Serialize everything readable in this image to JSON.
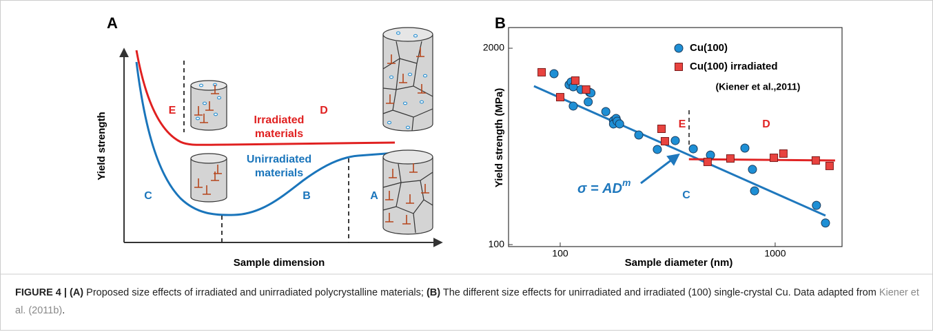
{
  "panel_a": {
    "label": "A",
    "y_label": "Yield strength",
    "x_label": "Sample dimension",
    "irradiated_label": [
      "Irradiated",
      "materials"
    ],
    "unirradiated_label": [
      "Unirradiated",
      "materials"
    ],
    "regions": {
      "E": "E",
      "D": "D",
      "C": "C",
      "B": "B",
      "A": "A"
    }
  },
  "chart_data": {
    "type": "scatter",
    "label": "B",
    "xlabel": "Sample diameter (nm)",
    "ylabel": "Yield strength (MPa)",
    "xscale": "log",
    "yscale": "log",
    "xlim": [
      57.5,
      2047
    ],
    "ylim": [
      97,
      2742
    ],
    "xticks": [
      100,
      1000
    ],
    "yticks": [
      100,
      2000
    ],
    "legend": "upper right",
    "series": [
      {
        "name": "Cu(100)",
        "color": "#1e8fd5",
        "marker": "circle",
        "x": [
          93.6,
          110,
          112.5,
          115,
          115,
          124.8,
          135,
          137,
          139,
          163,
          177,
          177,
          182,
          184,
          189,
          232,
          283,
          343,
          416,
          500,
          723,
          784,
          802,
          1556,
          1714
        ],
        "values": [
          1356,
          1146,
          1196,
          1111,
          828,
          1065,
          882,
          1021,
          1011,
          761,
          663,
          630,
          685,
          657,
          630,
          532,
          427,
          489,
          431,
          392,
          436,
          315,
          227,
          182,
          139
        ]
      },
      {
        "name": "Cu(100) irradiated",
        "color": "#e8433f",
        "marker": "square",
        "x": [
          82,
          100,
          117.6,
          132,
          296,
          307,
          485,
          619,
          986,
          1092,
          1545,
          1791
        ],
        "values": [
          1386,
          948,
          1221,
          1065,
          585,
          484,
          353,
          372,
          376,
          401,
          361,
          332
        ]
      },
      {
        "type": "line",
        "color": "#1f78bd",
        "x": [
          75.5,
          1714
        ],
        "values": [
          1122,
          155.6
        ]
      },
      {
        "type": "line",
        "color": "#e02424",
        "x": [
          397,
          1900
        ],
        "values": [
          368,
          361
        ]
      }
    ],
    "legend_note": "(Kiener et al.,2011)",
    "region_labels": {
      "E": "E",
      "D": "D",
      "C": "C"
    },
    "equation": {
      "base": "σ = AD",
      "exponent": "m"
    }
  },
  "caption": {
    "figure": "FIGURE 4 |",
    "part_a": "(A)",
    "text_a": " Proposed size effects of irradiated and unirradiated polycrystalline materials; ",
    "part_b": "(B)",
    "text_b": " The different size effects for unirradiated and irradiated (100) single-crystal Cu. Data adapted from ",
    "link": "Kiener et al. (2011b)",
    "end": "."
  }
}
